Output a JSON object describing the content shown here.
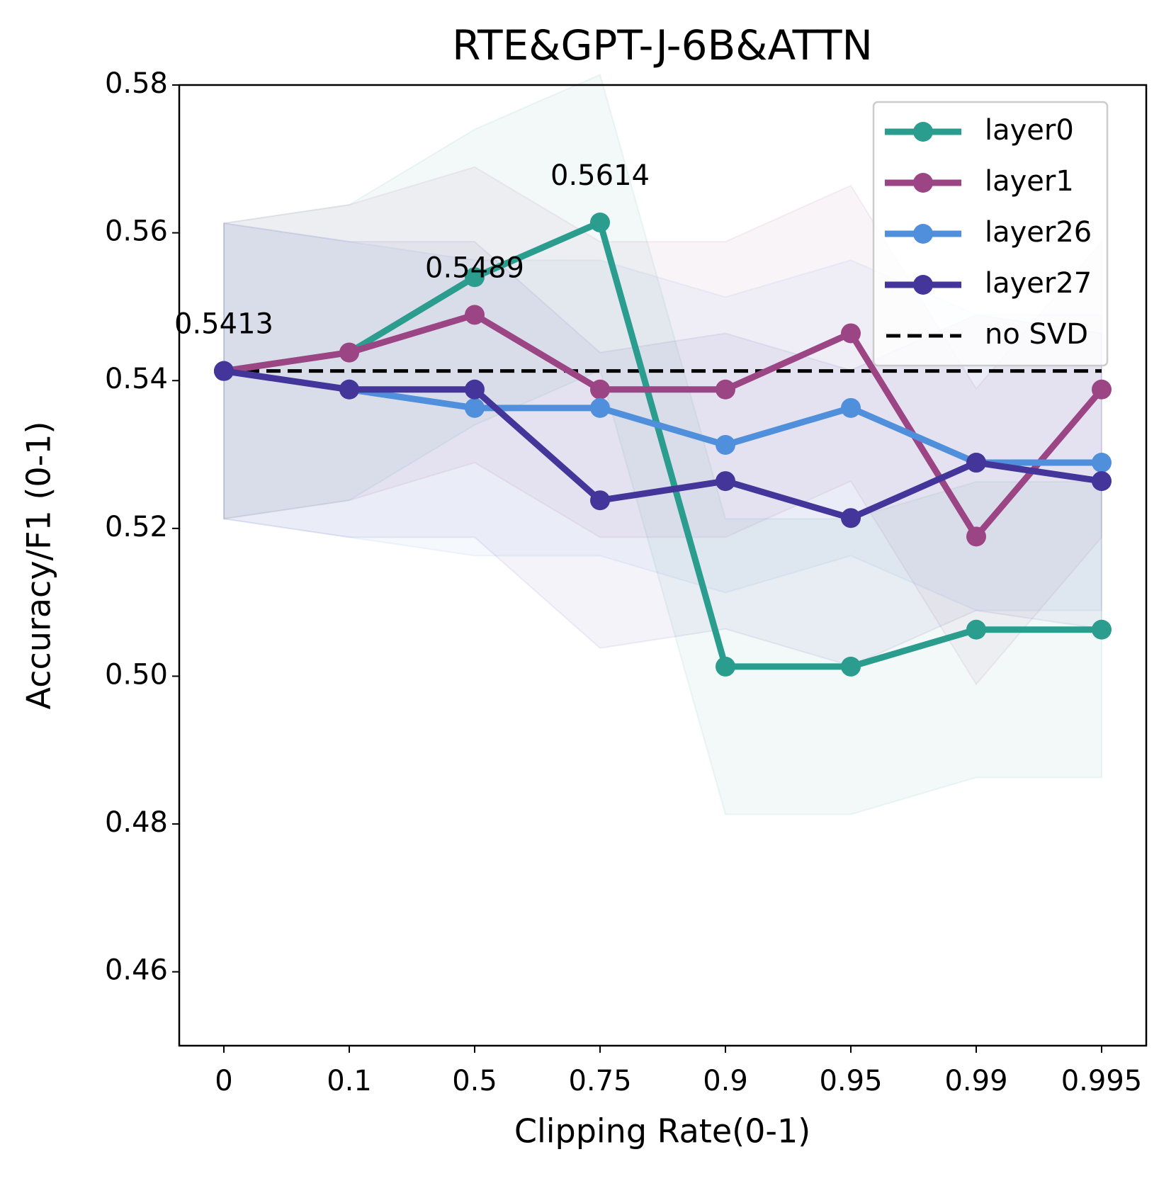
{
  "chart_data": {
    "type": "line",
    "title": "RTE&GPT-J-6B&ATTN",
    "x_label": "Clipping Rate(0-1)",
    "y_label": "Accuracy/F1 (0-1)",
    "categories": [
      "0",
      "0.1",
      "0.5",
      "0.75",
      "0.9",
      "0.95",
      "0.99",
      "0.995"
    ],
    "series": [
      {
        "name": "layer0",
        "color": "#2a9d8f",
        "band": 0.02,
        "values": [
          0.5413,
          0.5438,
          0.554,
          0.5614,
          0.5013,
          0.5013,
          0.5063,
          0.5063
        ]
      },
      {
        "name": "layer1",
        "color": "#9c4585",
        "band": 0.02,
        "values": [
          0.5413,
          0.5438,
          0.5489,
          0.5388,
          0.5388,
          0.5464,
          0.5189,
          0.5388
        ]
      },
      {
        "name": "layer26",
        "color": "#4f8fdb",
        "band": 0.02,
        "values": [
          0.5413,
          0.5388,
          0.5363,
          0.5363,
          0.5313,
          0.5363,
          0.5289,
          0.5289
        ]
      },
      {
        "name": "layer27",
        "color": "#43359a",
        "band": 0.02,
        "values": [
          0.5413,
          0.5388,
          0.5388,
          0.5238,
          0.5264,
          0.5214,
          0.5289,
          0.5264
        ]
      }
    ],
    "reference": {
      "name": "no SVD",
      "color": "#000000",
      "value": 0.5413
    },
    "annotations": [
      {
        "x": "0",
        "value": 0.5413
      },
      {
        "x": "0.5",
        "value": 0.5489
      },
      {
        "x": "0.75",
        "value": 0.5614
      }
    ],
    "ylim": [
      0.45,
      0.58
    ],
    "yticks": [
      {
        "value": 0.46,
        "label": "0.46"
      },
      {
        "value": 0.48,
        "label": "0.48"
      },
      {
        "value": 0.5,
        "label": "0.50"
      },
      {
        "value": 0.52,
        "label": "0.52"
      },
      {
        "value": 0.54,
        "label": "0.54"
      },
      {
        "value": 0.56,
        "label": "0.56"
      },
      {
        "value": 0.58,
        "label": "0.58"
      }
    ],
    "legend": "upper right",
    "grid": false
  }
}
